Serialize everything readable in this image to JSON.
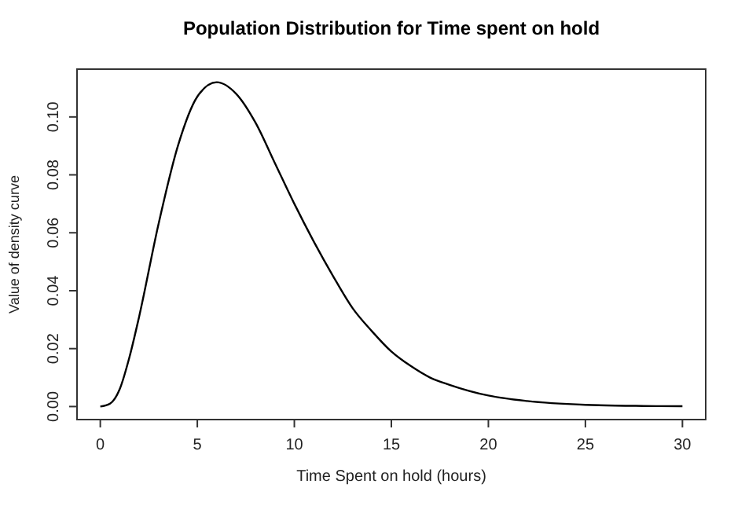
{
  "chart_data": {
    "type": "line",
    "title": "Population Distribution for Time spent on hold",
    "xlabel": "Time Spent on hold (hours)",
    "ylabel": "Value of density curve",
    "x": [
      0,
      0.5,
      1,
      1.5,
      2,
      3,
      4,
      5,
      6,
      7,
      8,
      9,
      10,
      11,
      12,
      13,
      14,
      15,
      16,
      17,
      18,
      20,
      22,
      25,
      28,
      30
    ],
    "series": [
      {
        "color": "#000000",
        "values": [
          0,
          0.001,
          0.006,
          0.017,
          0.031,
          0.063,
          0.09,
          0.107,
          0.112,
          0.108,
          0.098,
          0.084,
          0.07,
          0.057,
          0.045,
          0.034,
          0.026,
          0.019,
          0.014,
          0.01,
          0.0075,
          0.0038,
          0.0019,
          0.0006,
          0.0002,
          0.0001
        ]
      }
    ],
    "xlim": [
      -1.2,
      31.2
    ],
    "ylim": [
      -0.0045,
      0.1165
    ],
    "xticks": [
      0,
      5,
      10,
      15,
      20,
      25,
      30
    ],
    "yticks": [
      {
        "value": 0,
        "label": "0.00"
      },
      {
        "value": 0.02,
        "label": "0.02"
      },
      {
        "value": 0.04,
        "label": "0.04"
      },
      {
        "value": 0.06,
        "label": "0.06"
      },
      {
        "value": 0.08,
        "label": "0.08"
      },
      {
        "value": 0.1,
        "label": "0.10"
      }
    ],
    "marker": "none",
    "line_style": "solid"
  }
}
